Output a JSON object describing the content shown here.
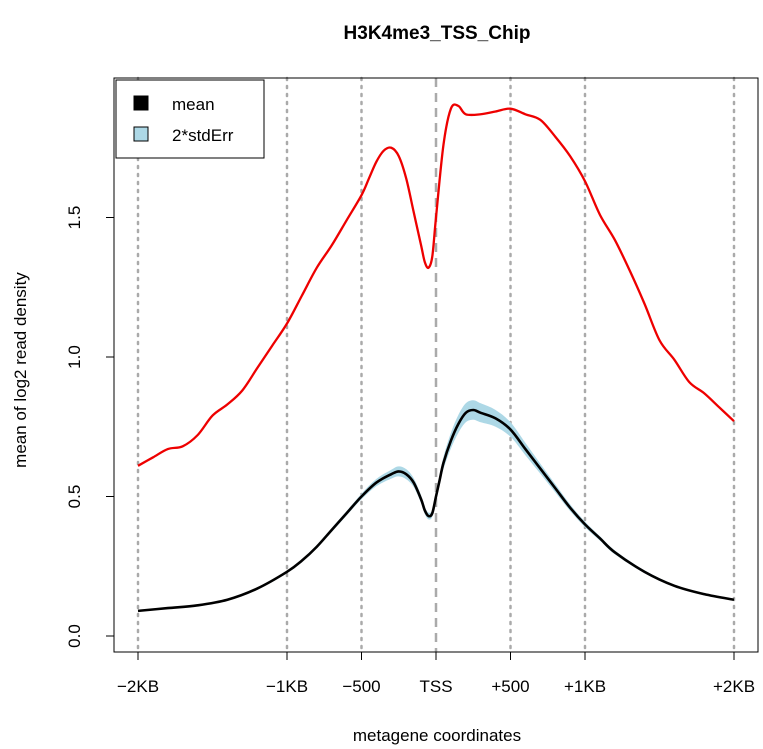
{
  "chart_data": {
    "type": "line",
    "title": "H3K4me3_TSS_Chip",
    "xlabel": "metagene coordinates",
    "ylabel": "mean of log2 read density",
    "xlim": [
      -2000,
      2000
    ],
    "ylim": [
      0.0,
      1.95
    ],
    "x_ticks": [
      {
        "value": -2000,
        "label": "−2KB"
      },
      {
        "value": -1000,
        "label": "−1KB"
      },
      {
        "value": -500,
        "label": "−500"
      },
      {
        "value": 0,
        "label": "TSS"
      },
      {
        "value": 500,
        "label": "+500"
      },
      {
        "value": 1000,
        "label": "+1KB"
      },
      {
        "value": 2000,
        "label": "+2KB"
      }
    ],
    "y_ticks": [
      {
        "value": 0.0,
        "label": "0.0"
      },
      {
        "value": 0.5,
        "label": "0.5"
      },
      {
        "value": 1.0,
        "label": "1.0"
      },
      {
        "value": 1.5,
        "label": "1.5"
      }
    ],
    "vertical_gridlines_dotted": [
      -2000,
      -1000,
      -500,
      500,
      1000,
      2000
    ],
    "tss_dashed_line": 0,
    "legend": {
      "position": "top-left",
      "entries": [
        {
          "label": "mean",
          "color": "#000000"
        },
        {
          "label": "2*stdErr",
          "color": "#add8e6"
        }
      ]
    },
    "series": [
      {
        "color": "#ee0000",
        "x": [
          -2000,
          -1900,
          -1800,
          -1700,
          -1600,
          -1500,
          -1400,
          -1300,
          -1200,
          -1100,
          -1000,
          -900,
          -800,
          -700,
          -600,
          -500,
          -450,
          -400,
          -350,
          -300,
          -250,
          -200,
          -150,
          -100,
          -75,
          -50,
          -25,
          0,
          50,
          100,
          150,
          200,
          300,
          400,
          500,
          600,
          700,
          800,
          900,
          1000,
          1100,
          1200,
          1300,
          1400,
          1500,
          1600,
          1700,
          1800,
          1900,
          2000
        ],
        "y": [
          0.61,
          0.64,
          0.67,
          0.68,
          0.72,
          0.79,
          0.83,
          0.88,
          0.96,
          1.04,
          1.12,
          1.22,
          1.32,
          1.4,
          1.49,
          1.58,
          1.64,
          1.7,
          1.74,
          1.75,
          1.72,
          1.64,
          1.52,
          1.4,
          1.34,
          1.32,
          1.36,
          1.5,
          1.76,
          1.89,
          1.9,
          1.87,
          1.87,
          1.88,
          1.89,
          1.87,
          1.85,
          1.79,
          1.72,
          1.63,
          1.51,
          1.42,
          1.31,
          1.19,
          1.06,
          0.99,
          0.91,
          0.87,
          0.82,
          0.77
        ]
      },
      {
        "name": "mean",
        "color": "#000000",
        "x": [
          -2000,
          -1800,
          -1600,
          -1400,
          -1200,
          -1000,
          -900,
          -800,
          -700,
          -600,
          -500,
          -400,
          -300,
          -250,
          -200,
          -150,
          -100,
          -75,
          -50,
          -25,
          0,
          25,
          50,
          100,
          150,
          200,
          250,
          300,
          400,
          500,
          600,
          700,
          800,
          900,
          1000,
          1100,
          1200,
          1400,
          1600,
          1800,
          2000
        ],
        "y": [
          0.09,
          0.1,
          0.11,
          0.13,
          0.17,
          0.23,
          0.27,
          0.32,
          0.38,
          0.44,
          0.5,
          0.55,
          0.58,
          0.59,
          0.58,
          0.55,
          0.49,
          0.45,
          0.43,
          0.44,
          0.5,
          0.56,
          0.62,
          0.7,
          0.76,
          0.8,
          0.81,
          0.8,
          0.78,
          0.74,
          0.67,
          0.6,
          0.53,
          0.46,
          0.4,
          0.35,
          0.3,
          0.23,
          0.18,
          0.15,
          0.13
        ]
      }
    ],
    "stderr_band": {
      "color": "#add8e6",
      "half_width": [
        0.002,
        0.002,
        0.002,
        0.003,
        0.003,
        0.004,
        0.005,
        0.006,
        0.007,
        0.008,
        0.01,
        0.013,
        0.016,
        0.018,
        0.018,
        0.016,
        0.014,
        0.013,
        0.012,
        0.012,
        0.014,
        0.018,
        0.022,
        0.028,
        0.032,
        0.034,
        0.035,
        0.034,
        0.03,
        0.026,
        0.022,
        0.018,
        0.015,
        0.012,
        0.01,
        0.008,
        0.007,
        0.005,
        0.004,
        0.003,
        0.002
      ]
    }
  }
}
